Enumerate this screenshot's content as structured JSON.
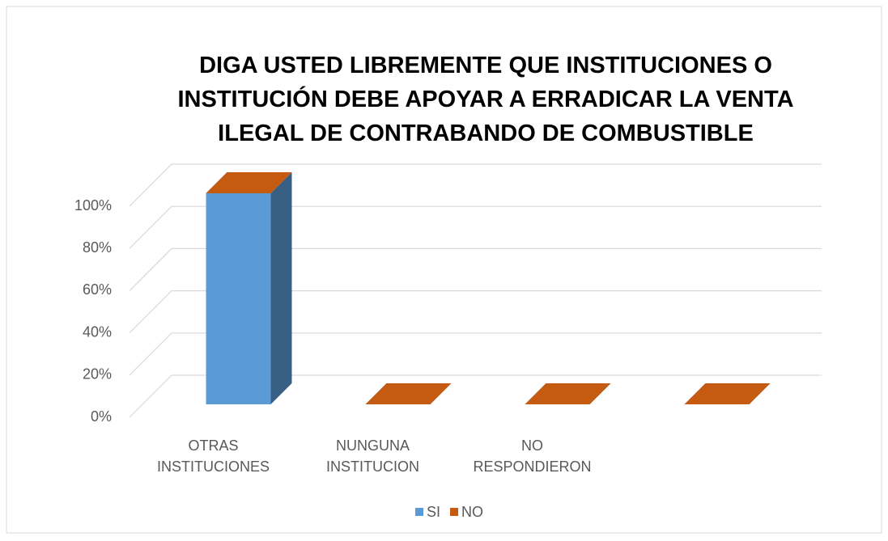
{
  "chart_data": {
    "type": "bar3d_stacked",
    "title": "DIGA USTED LIBREMENTE QUE INSTITUCIONES O INSTITUCIÓN DEBE APOYAR A ERRADICAR LA VENTA ILEGAL DE CONTRABANDO DE COMBUSTIBLE",
    "categories": [
      "OTRAS INSTITUCIONES",
      "NUNGUNA INSTITUCION",
      "NO RESPONDIERON",
      null
    ],
    "series": [
      {
        "name": "SI",
        "color": "#5b9bd5",
        "values": [
          100,
          0,
          0,
          0
        ]
      },
      {
        "name": "NO",
        "color": "#c55a11",
        "values": [
          0,
          0,
          0,
          0
        ]
      }
    ],
    "ylim": [
      0,
      100
    ],
    "yticks": [
      {
        "value": 0,
        "label": "0%"
      },
      {
        "value": 20,
        "label": "20%"
      },
      {
        "value": 40,
        "label": "40%"
      },
      {
        "value": 60,
        "label": "60%"
      },
      {
        "value": 80,
        "label": "80%"
      },
      {
        "value": 100,
        "label": "100%"
      }
    ],
    "grid": true,
    "legend": "bottom"
  }
}
